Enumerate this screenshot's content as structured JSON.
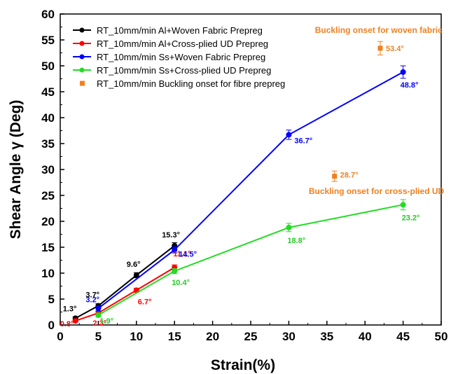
{
  "chart_data": {
    "type": "line",
    "xlabel": "Strain(%)",
    "ylabel": "Shear Angle γ (Deg)",
    "xlim": [
      0,
      50
    ],
    "ylim": [
      0,
      60
    ],
    "xticks": [
      0,
      5,
      10,
      15,
      20,
      25,
      30,
      35,
      40,
      45,
      50
    ],
    "yticks": [
      0,
      5,
      10,
      15,
      20,
      25,
      30,
      35,
      40,
      45,
      50,
      55,
      60
    ],
    "grid": false,
    "legend_position": "top-left",
    "series": [
      {
        "name": "RT_10mm/min Al+Woven Fabric Prepreg",
        "color": "#000000",
        "marker": "circle",
        "x": [
          2,
          5,
          10,
          15
        ],
        "y": [
          1.3,
          3.7,
          9.6,
          15.3
        ],
        "errors": [
          0.3,
          0.4,
          0.5,
          0.6
        ],
        "labels": [
          "1.3°",
          "3.7°",
          "9.6°",
          "15.3°"
        ],
        "label_color": "#000000"
      },
      {
        "name": "RT_10mm/min Al+Cross-plied UD Prepreg",
        "color": "#ff0000",
        "marker": "circle",
        "x": [
          2,
          5,
          10,
          15
        ],
        "y": [
          0.8,
          2.3,
          6.7,
          11.1
        ],
        "errors": [
          0.2,
          0.3,
          0.4,
          0.5
        ],
        "labels": [
          "0.8°",
          "2.3°",
          "6.7°",
          "11.1°"
        ],
        "label_color": "#ff0000"
      },
      {
        "name": "RT_10mm/min Ss+Woven Fabric Prepreg",
        "color": "#0000ff",
        "marker": "circle",
        "x": [
          5,
          15,
          30,
          45
        ],
        "y": [
          3.2,
          14.5,
          36.7,
          48.8
        ],
        "errors": [
          0.5,
          0.6,
          0.9,
          1.2
        ],
        "labels": [
          "3.2°",
          "14.5°",
          "36.7°",
          "48.8°"
        ],
        "label_color": "#0000ff"
      },
      {
        "name": "RT_10mm/min Ss+Cross-plied UD Prepreg",
        "color": "#22dd22",
        "marker": "circle",
        "x": [
          5,
          15,
          30,
          45
        ],
        "y": [
          1.9,
          10.4,
          18.8,
          23.2
        ],
        "errors": [
          0.4,
          0.5,
          0.8,
          1.0
        ],
        "labels": [
          "1.9°",
          "10.4°",
          "18.8°",
          "23.2°"
        ],
        "label_color": "#22cc22"
      },
      {
        "name": "RT_10mm/min Buckling onset for fibre prepreg",
        "color": "#f08020",
        "marker": "square",
        "line": false,
        "x": [
          36,
          42
        ],
        "y": [
          28.7,
          53.4
        ],
        "errors": [
          1.0,
          1.3
        ],
        "labels": [
          "28.7°",
          "53.4°"
        ],
        "label_color": "#f08020"
      }
    ],
    "annotations": [
      {
        "text": "Buckling onset for woven fabric",
        "x": 41.8,
        "y": 56.9,
        "color": "#f08020"
      },
      {
        "text": "Buckling onset for cross-plied UD",
        "x": 41.5,
        "y": 25.8,
        "color": "#f08020"
      }
    ]
  }
}
